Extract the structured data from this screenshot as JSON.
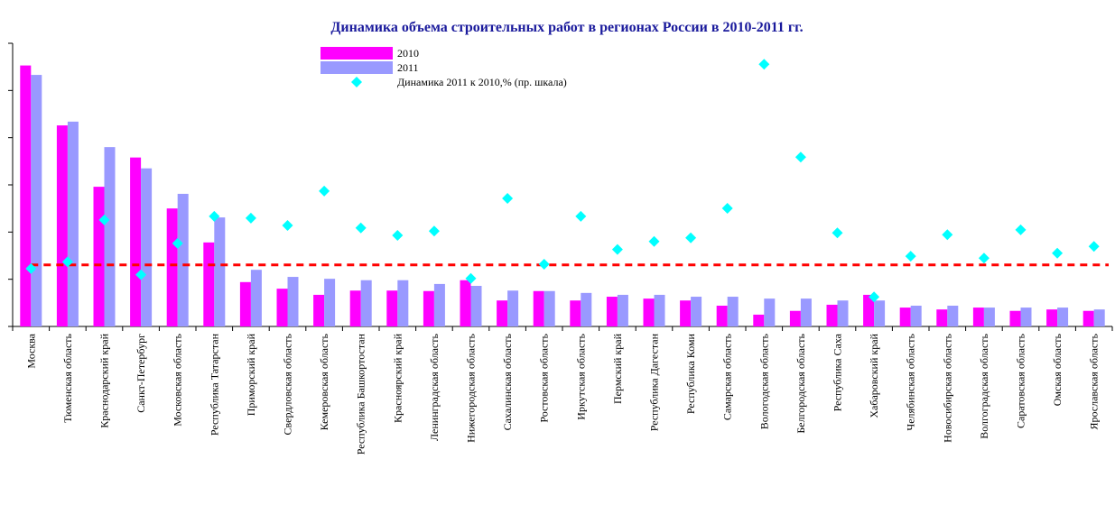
{
  "chart_data": {
    "type": "bar",
    "title": "Динамика объема строительных работ в регионах России в 2010-2011 гг.",
    "categories": [
      "Москва",
      "Тюменская область",
      "Краснодарский край",
      "Санкт-Петербург",
      "Московская область",
      "Республика Татарстан",
      "Приморский край",
      "Свердловская область",
      "Кемеровская область",
      "Республика Башкортостан",
      "Красноярский край",
      "Ленинградская область",
      "Нижегородская область",
      "Сахалинская область",
      "Ростовская область",
      "Иркутская область",
      "Пермский край",
      "Республика Дагестан",
      "Республика Коми",
      "Самарская область",
      "Вологодская область",
      "Белгородская область",
      "Республика Саха",
      "Хабаровский край",
      "Челябинская область",
      "Новосибирская область",
      "Волгоградская область",
      "Саратовская область",
      "Омская область",
      "Ярославская область"
    ],
    "series": [
      {
        "name": "2010",
        "color": "#ff00ff",
        "values": [
          5.53,
          4.26,
          2.96,
          3.58,
          2.5,
          1.78,
          0.94,
          0.8,
          0.67,
          0.76,
          0.76,
          0.75,
          0.98,
          0.55,
          0.75,
          0.55,
          0.63,
          0.59,
          0.55,
          0.44,
          0.25,
          0.33,
          0.46,
          0.67,
          0.4,
          0.36,
          0.4,
          0.33,
          0.36,
          0.33
        ]
      },
      {
        "name": "2011",
        "color": "#9999ff",
        "values": [
          5.33,
          4.34,
          3.8,
          3.35,
          2.81,
          2.31,
          1.2,
          1.05,
          1.01,
          0.98,
          0.98,
          0.9,
          0.86,
          0.76,
          0.75,
          0.71,
          0.67,
          0.67,
          0.63,
          0.63,
          0.59,
          0.59,
          0.55,
          0.55,
          0.44,
          0.44,
          0.4,
          0.4,
          0.4,
          0.36
        ]
      },
      {
        "name": "Динамика 2011 к 2010,% (пр. шкала)",
        "color": "#00ffff",
        "type": "scatter",
        "axis": "y2",
        "values": [
          94,
          105,
          173,
          84,
          135,
          179,
          176,
          164,
          220,
          160,
          148,
          155,
          78,
          208,
          101,
          179,
          125,
          138,
          144,
          192,
          426,
          275,
          152,
          48,
          114,
          149,
          111,
          157,
          119,
          130
        ]
      }
    ],
    "ylim": [
      0,
      6
    ],
    "yticks": [
      0,
      1,
      2,
      3,
      4,
      5,
      6
    ],
    "y2lim": [
      0,
      460
    ],
    "reference_line": {
      "value": 100,
      "axis": "y2",
      "color": "#ff0000"
    }
  }
}
